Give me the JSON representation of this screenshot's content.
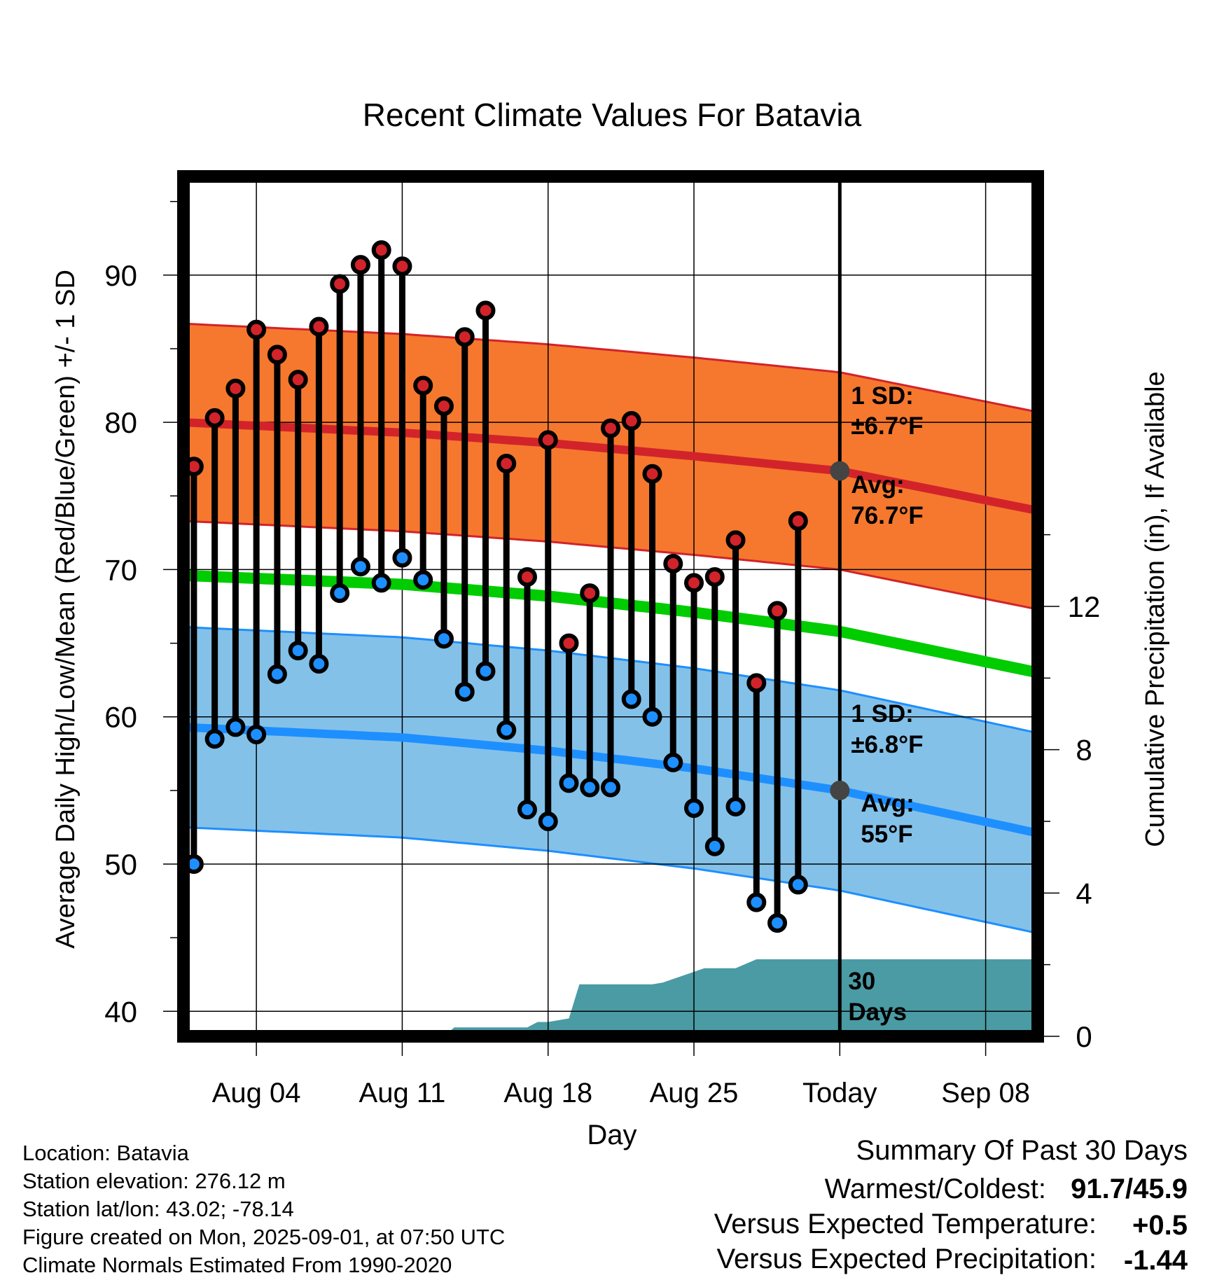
{
  "chart_data": {
    "type": "line",
    "title": "Recent Climate Values For Batavia",
    "xlabel": "Day",
    "ylabel": "Average Daily High/Low/Mean (Red/Blue/Green) +/- 1 SD",
    "y2label": "Cumulative Precipitation (in), If Available",
    "ylim": [
      38.3,
      96.7
    ],
    "y2lim": [
      0,
      24
    ],
    "y_ticks": [
      40,
      50,
      60,
      70,
      80,
      90
    ],
    "y_tick_labels": [
      "40",
      "50",
      "60",
      "70",
      "80",
      "90"
    ],
    "y2_ticks": [
      0,
      4,
      8,
      12
    ],
    "y2_tick_labels": [
      "0",
      "4",
      "8",
      "12"
    ],
    "x_tick_labels": [
      "Aug 04",
      "Aug 11",
      "Aug 18",
      "Aug 25",
      "Today",
      "Sep 08"
    ],
    "x_ticks": [
      "Aug 04",
      "Aug 11",
      "Aug 18",
      "Aug 25",
      "Sep 01",
      "Sep 08"
    ],
    "xlim": [
      "Jul 31 12:00",
      "Sep 10 12:00"
    ],
    "today": "Sep 01",
    "grid": true,
    "normals": {
      "high_avg": [
        {
          "x": "Jul 31 12:00",
          "y": 80.0
        },
        {
          "x": "Aug 11",
          "y": 79.3
        },
        {
          "x": "Aug 18",
          "y": 78.6
        },
        {
          "x": "Aug 25",
          "y": 77.7
        },
        {
          "x": "Sep 01",
          "y": 76.7
        },
        {
          "x": "Sep 10 12:00",
          "y": 74.0
        }
      ],
      "high_sd": 6.7,
      "low_avg": [
        {
          "x": "Jul 31 12:00",
          "y": 59.3
        },
        {
          "x": "Aug 11",
          "y": 58.6
        },
        {
          "x": "Aug 18",
          "y": 57.7
        },
        {
          "x": "Aug 25",
          "y": 56.5
        },
        {
          "x": "Sep 01",
          "y": 55.0
        },
        {
          "x": "Sep 10 12:00",
          "y": 52.1
        }
      ],
      "low_sd": 6.8,
      "mean": [
        {
          "x": "Jul 31 12:00",
          "y": 69.6
        },
        {
          "x": "Aug 11",
          "y": 69.0
        },
        {
          "x": "Aug 18",
          "y": 68.2
        },
        {
          "x": "Aug 25",
          "y": 67.1
        },
        {
          "x": "Sep 01",
          "y": 65.8
        },
        {
          "x": "Sep 10 12:00",
          "y": 63.0
        }
      ]
    },
    "daily": [
      {
        "date": "Aug 01",
        "high": 77.0,
        "low": 50.0
      },
      {
        "date": "Aug 02",
        "high": 80.3,
        "low": 58.5
      },
      {
        "date": "Aug 03",
        "high": 82.3,
        "low": 59.3
      },
      {
        "date": "Aug 04",
        "high": 86.3,
        "low": 58.8
      },
      {
        "date": "Aug 05",
        "high": 84.6,
        "low": 62.9
      },
      {
        "date": "Aug 06",
        "high": 82.9,
        "low": 64.5
      },
      {
        "date": "Aug 07",
        "high": 86.5,
        "low": 63.6
      },
      {
        "date": "Aug 08",
        "high": 89.4,
        "low": 68.4
      },
      {
        "date": "Aug 09",
        "high": 90.7,
        "low": 70.2
      },
      {
        "date": "Aug 10",
        "high": 91.7,
        "low": 69.1
      },
      {
        "date": "Aug 11",
        "high": 90.6,
        "low": 70.8
      },
      {
        "date": "Aug 12",
        "high": 82.5,
        "low": 69.3
      },
      {
        "date": "Aug 13",
        "high": 81.1,
        "low": 65.3
      },
      {
        "date": "Aug 14",
        "high": 85.8,
        "low": 61.7
      },
      {
        "date": "Aug 15",
        "high": 87.6,
        "low": 63.1
      },
      {
        "date": "Aug 16",
        "high": 77.2,
        "low": 59.1
      },
      {
        "date": "Aug 17",
        "high": 69.5,
        "low": 53.7
      },
      {
        "date": "Aug 18",
        "high": 78.8,
        "low": 52.9
      },
      {
        "date": "Aug 19",
        "high": 65.0,
        "low": 55.5
      },
      {
        "date": "Aug 20",
        "high": 68.4,
        "low": 55.2
      },
      {
        "date": "Aug 21",
        "high": 79.6,
        "low": 55.2
      },
      {
        "date": "Aug 22",
        "high": 80.1,
        "low": 61.2
      },
      {
        "date": "Aug 23",
        "high": 76.5,
        "low": 60.0
      },
      {
        "date": "Aug 24",
        "high": 70.4,
        "low": 56.9
      },
      {
        "date": "Aug 25",
        "high": 69.1,
        "low": 53.8
      },
      {
        "date": "Aug 26",
        "high": 69.5,
        "low": 51.2
      },
      {
        "date": "Aug 27",
        "high": 72.0,
        "low": 53.9
      },
      {
        "date": "Aug 28",
        "high": 62.3,
        "low": 47.4
      },
      {
        "date": "Aug 29",
        "high": 67.2,
        "low": 46.0
      },
      {
        "date": "Aug 30",
        "high": 73.3,
        "low": 48.6
      }
    ],
    "precip_cumulative": [
      {
        "x": "Aug 02",
        "y": 0.0
      },
      {
        "x": "Aug 13",
        "y": 0.0
      },
      {
        "x": "Aug 13 12:00",
        "y": 0.25
      },
      {
        "x": "Aug 17",
        "y": 0.25
      },
      {
        "x": "Aug 17 12:00",
        "y": 0.4
      },
      {
        "x": "Aug 18",
        "y": 0.4
      },
      {
        "x": "Aug 18 12:00",
        "y": 0.45
      },
      {
        "x": "Aug 19",
        "y": 0.5
      },
      {
        "x": "Aug 19 12:00",
        "y": 1.45
      },
      {
        "x": "Aug 23",
        "y": 1.45
      },
      {
        "x": "Aug 23 12:00",
        "y": 1.5
      },
      {
        "x": "Aug 25",
        "y": 1.8
      },
      {
        "x": "Aug 25 12:00",
        "y": 1.9
      },
      {
        "x": "Aug 27",
        "y": 1.9
      },
      {
        "x": "Aug 28",
        "y": 2.15
      },
      {
        "x": "Sep 10 12:00",
        "y": 2.15
      }
    ],
    "annotations": {
      "high_sd_line1": "1 SD:",
      "high_sd_line2": "±6.7°F",
      "high_avg_line1": "Avg:",
      "high_avg_line2": "76.7°F",
      "low_sd_line1": "1 SD:",
      "low_sd_line2": "±6.8°F",
      "low_avg_line1": "Avg:",
      "low_avg_line2": "55°F",
      "precip_line1": "30",
      "precip_line2": "Days"
    },
    "colors": {
      "high_band": "#f5782e",
      "high_line": "#d2232a",
      "low_band": "#84c1e8",
      "low_line": "#1e8ffe",
      "mean_line": "#00cc00",
      "precip": "#4a9ba4",
      "high_marker": "#d2232a",
      "low_marker": "#1e8ffe",
      "annotation": "#555555",
      "positive_anomaly": "#d2232a",
      "negative_anomaly": "#a0522d"
    }
  },
  "info": {
    "location": "Location: Batavia",
    "elevation": "Station elevation: 276.12 m",
    "latlon": "Station lat/lon: 43.02; -78.14",
    "created": "Figure created on Mon, 2025-09-01, at 07:50 UTC",
    "normals": "Climate Normals Estimated From 1990-2020"
  },
  "summary": {
    "title": "Summary Of Past 30 Days",
    "warm_cold_label": "Warmest/Coldest:",
    "warm_cold_value": "91.7/45.9",
    "temp_label": "Versus Expected Temperature:",
    "temp_value": "+0.5",
    "precip_label": "Versus Expected Precipitation:",
    "precip_value": "-1.44"
  }
}
